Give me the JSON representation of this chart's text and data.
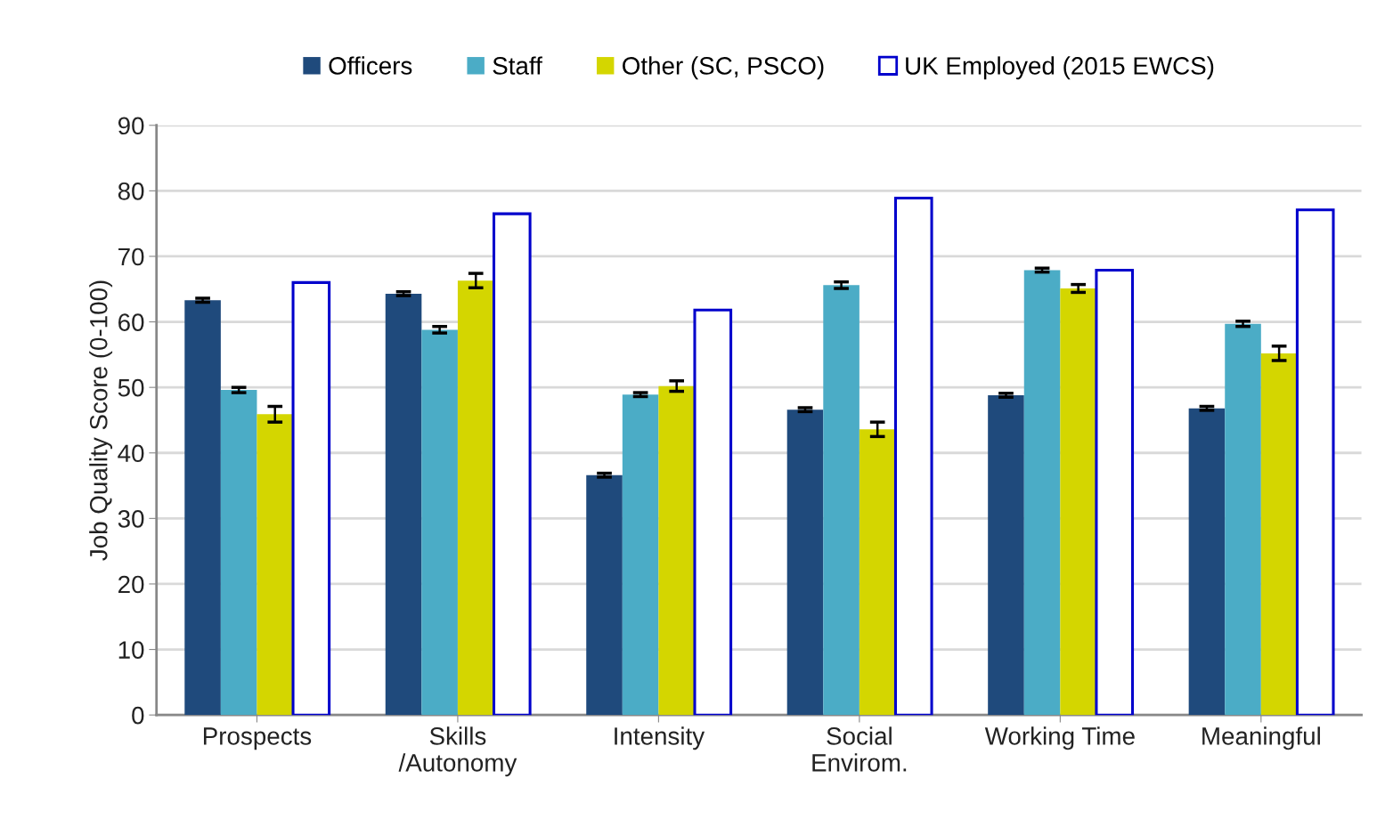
{
  "chart_data": {
    "type": "bar",
    "ylabel": "Job Quality Score (0-100)",
    "categories": [
      "Prospects",
      "Skills\n/Autonomy",
      "Intensity",
      "Social\nEnvirom.",
      "Working Time",
      "Meaningful"
    ],
    "series": [
      {
        "name": "Officers",
        "color": "#1f4a7c",
        "values": [
          63.3,
          64.3,
          36.6,
          46.6,
          48.8,
          46.8
        ],
        "errors": [
          0.3,
          0.3,
          0.3,
          0.3,
          0.3,
          0.3
        ]
      },
      {
        "name": "Staff",
        "color": "#4bacc6",
        "values": [
          49.6,
          58.8,
          48.9,
          65.6,
          67.9,
          59.7
        ],
        "errors": [
          0.4,
          0.5,
          0.3,
          0.5,
          0.3,
          0.4
        ]
      },
      {
        "name": "Other (SC, PSCO)",
        "color": "#d4d600",
        "values": [
          45.9,
          66.3,
          50.2,
          43.6,
          65.1,
          55.2
        ],
        "errors": [
          1.2,
          1.1,
          0.8,
          1.1,
          0.6,
          1.1
        ]
      },
      {
        "name": "UK Employed (2015 EWCS)",
        "color": "#0000cc",
        "line_style": "solid",
        "values": [
          66.0,
          76.5,
          61.8,
          78.9,
          67.9,
          77.1
        ]
      }
    ],
    "ylim": [
      0,
      90
    ],
    "yticks": [
      0,
      10,
      20,
      30,
      40,
      50,
      60,
      70,
      80,
      90
    ],
    "grid": "y",
    "legend": "top"
  }
}
